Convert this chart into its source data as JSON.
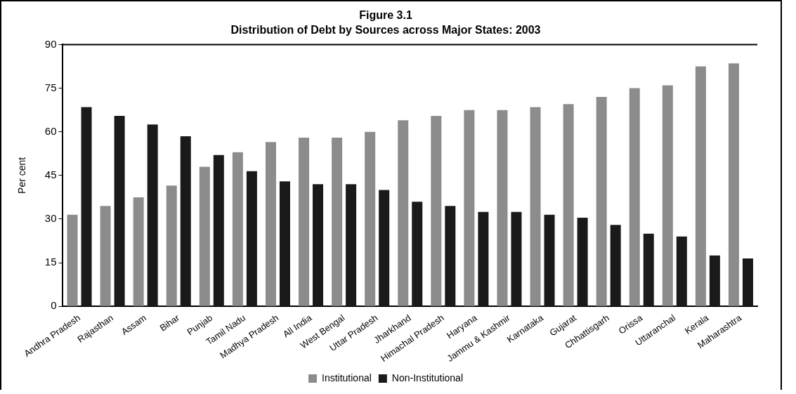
{
  "chart_data": {
    "type": "bar",
    "title": "Figure 3.1",
    "subtitle": "Distribution of Debt by Sources across Major States: 2003",
    "ylabel": "Per cent",
    "categories": [
      "Andhra Pradesh",
      "Rajasthan",
      "Assam",
      "Bihar",
      "Punjab",
      "Tamil Nadu",
      "Madhya Pradesh",
      "All India",
      "West Bengal",
      "Uttar Pradesh",
      "Jharkhand",
      "Himachal Pradesh",
      "Haryana",
      "Jammu & Kashmir",
      "Karnataka",
      "Gujarat",
      "Chhattisgarh",
      "Orissa",
      "Uttaranchal",
      "Kerala",
      "Maharashtra"
    ],
    "series": [
      {
        "name": "Institutional",
        "color": "#8c8c8c",
        "values": [
          31.5,
          34.5,
          37.5,
          41.5,
          48,
          53,
          56.5,
          58,
          58,
          60,
          64,
          65.5,
          67.5,
          67.5,
          68.5,
          69.5,
          72,
          75,
          76,
          82.5,
          83.5
        ]
      },
      {
        "name": "Non-Institutional",
        "color": "#1a1a1a",
        "values": [
          68.5,
          65.5,
          62.5,
          58.5,
          52,
          46.5,
          43,
          42,
          42,
          40,
          36,
          34.5,
          32.5,
          32.5,
          31.5,
          30.5,
          28,
          25,
          24,
          17.5,
          16.5
        ]
      }
    ],
    "ylim": [
      0,
      90
    ],
    "yticks": [
      0,
      15,
      30,
      45,
      60,
      75,
      90
    ],
    "grid": false,
    "legend": "bottom"
  }
}
